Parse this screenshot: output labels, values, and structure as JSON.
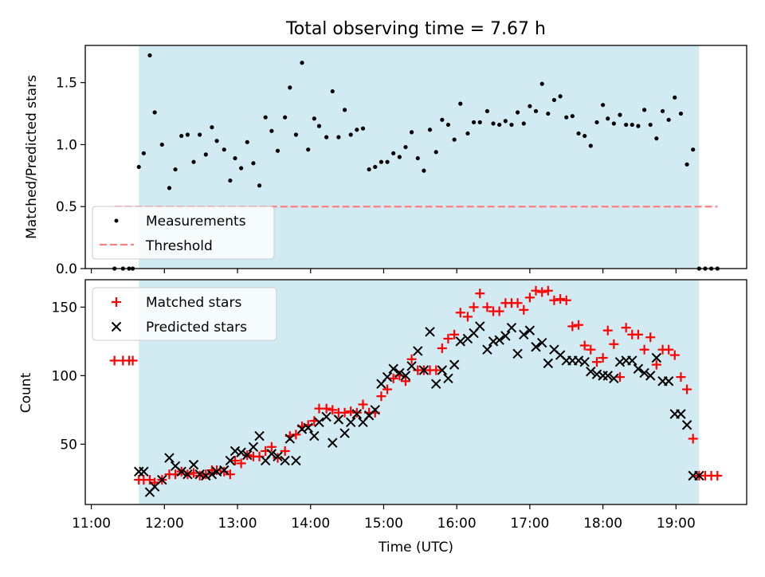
{
  "title": "Total observing time = 7.67 h",
  "colors": {
    "shade": "#add8e6",
    "measurements": "#000000",
    "threshold": "#ff7f7f",
    "matched": "#ff0000",
    "predicted": "#000000"
  },
  "chart_data": [
    {
      "type": "scatter",
      "ylabel": "Matched/Predicted stars",
      "ylim": [
        0,
        1.8
      ],
      "yticks": [
        0.0,
        0.5,
        1.0,
        1.5
      ],
      "ytick_labels": [
        "0.0",
        "0.5",
        "1.0",
        "1.5"
      ],
      "xlim": [
        10.917,
        19.967
      ],
      "xticks": [
        11,
        12,
        13,
        14,
        15,
        16,
        17,
        18,
        19
      ],
      "shaded_span": [
        11.65,
        19.317
      ],
      "grid": false,
      "legend_position": "lower-left",
      "threshold": {
        "name": "Threshold",
        "y": 0.5,
        "x": [
          11.317,
          19.567
        ]
      },
      "measurements": {
        "name": "Measurements",
        "x": [
          11.317,
          11.433,
          11.517,
          11.567,
          11.65,
          11.717,
          11.8,
          11.867,
          11.967,
          12.067,
          12.15,
          12.233,
          12.317,
          12.4,
          12.483,
          12.567,
          12.65,
          12.717,
          12.817,
          12.9,
          12.967,
          13.05,
          13.133,
          13.217,
          13.3,
          13.383,
          13.467,
          13.55,
          13.65,
          13.717,
          13.8,
          13.883,
          13.967,
          14.05,
          14.117,
          14.217,
          14.3,
          14.383,
          14.467,
          14.55,
          14.633,
          14.717,
          14.8,
          14.883,
          14.967,
          15.05,
          15.133,
          15.217,
          15.3,
          15.383,
          15.467,
          15.55,
          15.633,
          15.717,
          15.8,
          15.883,
          15.967,
          16.05,
          16.15,
          16.233,
          16.317,
          16.417,
          16.5,
          16.583,
          16.667,
          16.75,
          16.833,
          16.917,
          17.0,
          17.083,
          17.167,
          17.25,
          17.333,
          17.417,
          17.5,
          17.583,
          17.667,
          17.75,
          17.833,
          17.917,
          18.0,
          18.067,
          18.15,
          18.233,
          18.317,
          18.4,
          18.483,
          18.567,
          18.65,
          18.733,
          18.817,
          18.9,
          18.983,
          19.067,
          19.15,
          19.233,
          19.317,
          19.4,
          19.483,
          19.567
        ],
        "y": [
          0.0,
          0.0,
          0.0,
          0.0,
          0.82,
          0.93,
          1.72,
          1.26,
          1.0,
          0.65,
          0.8,
          1.07,
          1.08,
          0.86,
          1.08,
          0.92,
          1.14,
          1.03,
          0.96,
          0.71,
          0.89,
          0.81,
          1.02,
          0.85,
          0.67,
          1.22,
          1.11,
          0.95,
          1.22,
          1.46,
          1.08,
          1.66,
          0.96,
          1.21,
          1.15,
          1.06,
          1.43,
          1.06,
          1.28,
          1.08,
          1.12,
          1.13,
          0.8,
          0.82,
          0.86,
          0.86,
          0.93,
          0.9,
          0.98,
          1.1,
          0.89,
          0.79,
          1.12,
          0.94,
          1.2,
          1.16,
          1.04,
          1.33,
          1.09,
          1.18,
          1.18,
          1.27,
          1.17,
          1.16,
          1.19,
          1.16,
          1.26,
          1.17,
          1.31,
          1.27,
          1.49,
          1.25,
          1.36,
          1.39,
          1.22,
          1.23,
          1.09,
          1.07,
          0.99,
          1.18,
          1.32,
          1.21,
          1.17,
          1.24,
          1.16,
          1.16,
          1.15,
          1.28,
          1.16,
          1.05,
          1.27,
          1.2,
          1.38,
          1.25,
          0.84,
          0.96,
          0.0,
          0.0,
          0.0,
          0.0
        ]
      }
    },
    {
      "type": "scatter",
      "ylabel": "Count",
      "xlabel": "Time (UTC)",
      "ylim": [
        6,
        170
      ],
      "yticks": [
        50,
        100,
        150
      ],
      "ytick_labels": [
        "50",
        "100",
        "150"
      ],
      "xlim": [
        10.917,
        19.967
      ],
      "xticks": [
        11,
        12,
        13,
        14,
        15,
        16,
        17,
        18,
        19
      ],
      "xtick_labels": [
        "11:00",
        "12:00",
        "13:00",
        "14:00",
        "15:00",
        "16:00",
        "17:00",
        "18:00",
        "19:00"
      ],
      "shaded_span": [
        11.65,
        19.317
      ],
      "grid": false,
      "legend_position": "upper-left",
      "series": [
        {
          "name": "Matched stars",
          "marker": "plus",
          "x": [
            11.317,
            11.433,
            11.517,
            11.567,
            11.65,
            11.717,
            11.8,
            11.867,
            11.967,
            12.067,
            12.15,
            12.233,
            12.317,
            12.4,
            12.483,
            12.567,
            12.65,
            12.717,
            12.817,
            12.9,
            12.967,
            13.05,
            13.133,
            13.217,
            13.3,
            13.383,
            13.467,
            13.55,
            13.65,
            13.717,
            13.8,
            13.883,
            13.967,
            14.05,
            14.117,
            14.217,
            14.3,
            14.383,
            14.467,
            14.55,
            14.633,
            14.717,
            14.8,
            14.883,
            14.967,
            15.05,
            15.133,
            15.217,
            15.3,
            15.383,
            15.467,
            15.55,
            15.633,
            15.717,
            15.8,
            15.883,
            15.967,
            16.05,
            16.15,
            16.233,
            16.317,
            16.417,
            16.5,
            16.583,
            16.667,
            16.75,
            16.833,
            16.917,
            17.0,
            17.083,
            17.167,
            17.25,
            17.333,
            17.417,
            17.5,
            17.583,
            17.667,
            17.75,
            17.833,
            17.917,
            18.0,
            18.067,
            18.15,
            18.233,
            18.317,
            18.4,
            18.483,
            18.567,
            18.65,
            18.733,
            18.817,
            18.9,
            18.983,
            19.067,
            19.15,
            19.233,
            19.317,
            19.4,
            19.483,
            19.567
          ],
          "y": [
            111,
            111,
            111,
            111,
            24,
            24,
            24,
            22,
            24,
            28,
            28,
            30,
            28,
            29,
            27,
            28,
            31,
            31,
            30,
            28,
            38,
            36,
            42,
            41,
            41,
            45,
            48,
            40,
            45,
            56,
            57,
            63,
            64,
            67,
            76,
            76,
            75,
            73,
            73,
            74,
            73,
            79,
            73,
            73,
            85,
            90,
            98,
            100,
            96,
            112,
            104,
            104,
            104,
            104,
            120,
            127,
            130,
            146,
            143,
            150,
            160,
            150,
            147,
            147,
            153,
            153,
            153,
            148,
            157,
            162,
            161,
            162,
            155,
            156,
            155,
            136,
            137,
            122,
            119,
            110,
            113,
            133,
            123,
            99,
            135,
            130,
            130,
            119,
            128,
            108,
            119,
            119,
            115,
            99,
            90,
            54,
            27,
            27,
            27,
            27
          ]
        },
        {
          "name": "Predicted stars",
          "marker": "x",
          "x": [
            11.65,
            11.717,
            11.8,
            11.867,
            11.967,
            12.067,
            12.15,
            12.233,
            12.317,
            12.4,
            12.483,
            12.567,
            12.65,
            12.717,
            12.817,
            12.9,
            12.967,
            13.05,
            13.133,
            13.217,
            13.3,
            13.383,
            13.467,
            13.55,
            13.65,
            13.717,
            13.8,
            13.883,
            13.967,
            14.05,
            14.117,
            14.217,
            14.3,
            14.383,
            14.467,
            14.55,
            14.633,
            14.717,
            14.8,
            14.883,
            14.967,
            15.05,
            15.133,
            15.217,
            15.3,
            15.383,
            15.467,
            15.55,
            15.633,
            15.717,
            15.8,
            15.883,
            15.967,
            16.05,
            16.15,
            16.233,
            16.317,
            16.417,
            16.5,
            16.583,
            16.667,
            16.75,
            16.833,
            16.917,
            17.0,
            17.083,
            17.167,
            17.25,
            17.333,
            17.417,
            17.5,
            17.583,
            17.667,
            17.75,
            17.833,
            17.917,
            18.0,
            18.067,
            18.15,
            18.233,
            18.317,
            18.4,
            18.483,
            18.567,
            18.65,
            18.733,
            18.817,
            18.9,
            18.983,
            19.067,
            19.15,
            19.233,
            19.317
          ],
          "y": [
            30,
            30,
            15,
            19,
            24,
            40,
            34,
            30,
            28,
            35,
            28,
            27,
            28,
            30,
            31,
            38,
            45,
            44,
            42,
            48,
            56,
            38,
            43,
            41,
            38,
            54,
            38,
            61,
            62,
            56,
            66,
            70,
            51,
            68,
            58,
            66,
            72,
            66,
            71,
            75,
            94,
            99,
            105,
            102,
            100,
            107,
            118,
            104,
            132,
            94,
            104,
            98,
            108,
            125,
            127,
            131,
            136,
            119,
            125,
            126,
            129,
            135,
            116,
            130,
            133,
            121,
            124,
            109,
            119,
            115,
            111,
            111,
            111,
            110,
            103,
            101,
            100,
            100,
            98,
            110,
            111,
            111,
            105,
            102,
            100,
            113,
            96,
            96,
            72,
            72,
            64,
            27,
            27
          ]
        }
      ]
    }
  ]
}
